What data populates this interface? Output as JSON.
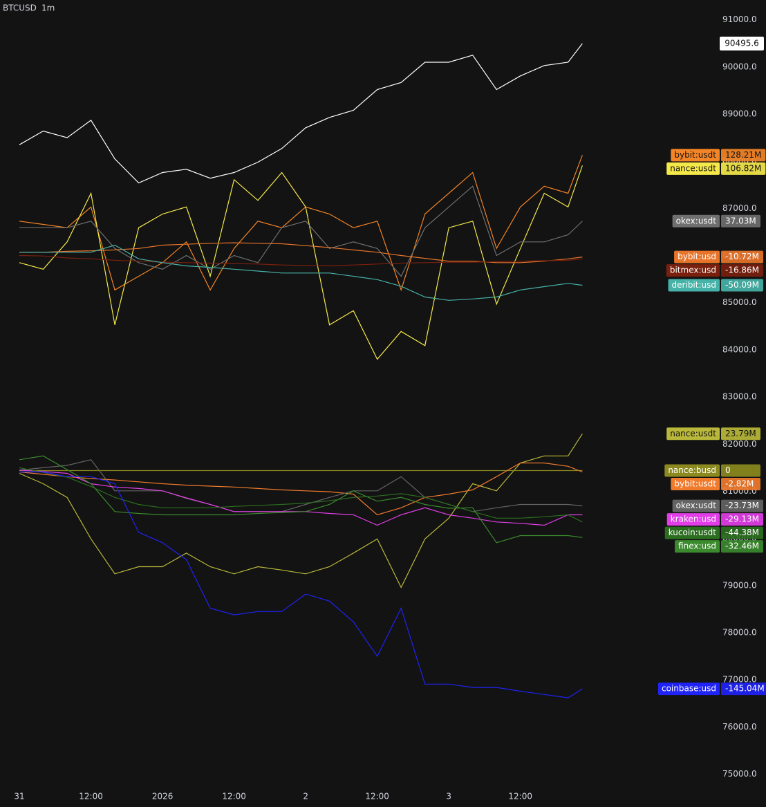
{
  "chart_data": {
    "type": "line",
    "title": "BTCUSD",
    "interval": "1m",
    "background": "#131313",
    "x": [
      0,
      4,
      8,
      12,
      16,
      20,
      24,
      28,
      32,
      36,
      40,
      44,
      48,
      52,
      56,
      60,
      64,
      68,
      72,
      76,
      80,
      84,
      88,
      92,
      94.4
    ],
    "xlim": [
      -3.25,
      117.3
    ],
    "xticks": [
      {
        "value": 0,
        "label": "31"
      },
      {
        "value": 12,
        "label": "12:00"
      },
      {
        "value": 24,
        "label": "2026"
      },
      {
        "value": 36,
        "label": "12:00"
      },
      {
        "value": 48,
        "label": "2"
      },
      {
        "value": 60,
        "label": "12:00"
      },
      {
        "value": 72,
        "label": "3"
      },
      {
        "value": 84,
        "label": "12:00"
      }
    ],
    "ylim": [
      74700,
      91420
    ],
    "yticks": [
      {
        "value": 75000,
        "label": "75000.0"
      },
      {
        "value": 76000,
        "label": "76000.0"
      },
      {
        "value": 77000,
        "label": "77000.0"
      },
      {
        "value": 78000,
        "label": "78000.0"
      },
      {
        "value": 79000,
        "label": "79000.0"
      },
      {
        "value": 80000,
        "label": "80000.0"
      },
      {
        "value": 81000,
        "label": "81000.0"
      },
      {
        "value": 82000,
        "label": "82000.0"
      },
      {
        "value": 83000,
        "label": "83000.0"
      },
      {
        "value": 84000,
        "label": "84000.0"
      },
      {
        "value": 85000,
        "label": "85000.0"
      },
      {
        "value": 86000,
        "label": "86000.0"
      },
      {
        "value": 87000,
        "label": "87000.0"
      },
      {
        "value": 88000,
        "label": "88000.0"
      },
      {
        "value": 89000,
        "label": "89000.0"
      },
      {
        "value": 90000,
        "label": "90000.0"
      },
      {
        "value": 91000,
        "label": "91000.0"
      }
    ],
    "series": [
      {
        "color": "#ffffff",
        "values": [
          88350,
          88640,
          88500,
          88870,
          88050,
          87540,
          87760,
          87830,
          87640,
          87760,
          87980,
          88270,
          88710,
          88930,
          89080,
          89520,
          89670,
          90100,
          90100,
          90250,
          89520,
          89810,
          90030,
          90100,
          90495.6
        ]
      },
      {
        "name": "bybit:usdt",
        "label": "128.21M",
        "color": "#f48526",
        "values": [
          86730,
          86660,
          86590,
          87030,
          85270,
          85560,
          85850,
          86290,
          85270,
          86150,
          86730,
          86590,
          87030,
          86880,
          86590,
          86730,
          85270,
          86880,
          87320,
          87760,
          86150,
          87030,
          87470,
          87320,
          88130
        ]
      },
      {
        "name": "nance:usdt",
        "label": "106.82M",
        "color": "#f5e94a",
        "values": [
          85850,
          85710,
          86290,
          87320,
          84530,
          86590,
          86880,
          87030,
          85560,
          87610,
          87170,
          87760,
          87030,
          84530,
          84830,
          83800,
          84390,
          84090,
          86590,
          86730,
          84970,
          86150,
          87320,
          87030,
          87910
        ]
      },
      {
        "name": "okex:usdt",
        "label": "37.03M",
        "color": "#6f6f6f",
        "values": [
          86590,
          86590,
          86590,
          86730,
          86150,
          85850,
          85710,
          86000,
          85710,
          86000,
          85850,
          86590,
          86730,
          86150,
          86290,
          86150,
          85560,
          86590,
          87030,
          87470,
          86000,
          86290,
          86290,
          86440,
          86730
        ]
      },
      {
        "name": "bybit:usd",
        "label": "-10.72M",
        "color": "#e8742a",
        "values": [
          86070,
          86070,
          86090,
          86100,
          86120,
          86150,
          86220,
          86240,
          86260,
          86270,
          86260,
          86250,
          86210,
          86170,
          86120,
          86070,
          86000,
          85940,
          85880,
          85880,
          85850,
          85850,
          85880,
          85930,
          85970
        ]
      },
      {
        "name": "bitmex:usd",
        "label": "-16.86M",
        "color": "#7a200e",
        "values": [
          86000,
          85990,
          85950,
          85930,
          85900,
          85880,
          85860,
          85850,
          85840,
          85830,
          85820,
          85800,
          85790,
          85780,
          85800,
          85820,
          85840,
          85850,
          85860,
          85860,
          85870,
          85880,
          85890,
          85900,
          85930
        ]
      },
      {
        "name": "deribit:usd",
        "label": "-50.09M",
        "color": "#46b3a8",
        "values": [
          86070,
          86070,
          86070,
          86070,
          86220,
          85930,
          85850,
          85780,
          85750,
          85710,
          85670,
          85630,
          85630,
          85630,
          85560,
          85490,
          85350,
          85120,
          85050,
          85080,
          85120,
          85270,
          85340,
          85410,
          85370
        ]
      },
      {
        "name": "nance:usdt",
        "label": "23.79M",
        "color": "#b9b83a",
        "values": [
          81380,
          81160,
          80870,
          79990,
          79250,
          79400,
          79400,
          79690,
          79400,
          79250,
          79400,
          79330,
          79250,
          79400,
          79690,
          79990,
          78960,
          79990,
          80430,
          81160,
          81010,
          81600,
          81750,
          81750,
          82220
        ]
      },
      {
        "name": "nance:busd",
        "label": "0",
        "color": "#8c8a1e",
        "values": [
          81440,
          81440,
          81440,
          81440,
          81440,
          81440,
          81440,
          81440,
          81440,
          81440,
          81440,
          81440,
          81440,
          81440,
          81440,
          81440,
          81440,
          81440,
          81440,
          81440,
          81440,
          81440,
          81440,
          81440,
          81440
        ]
      },
      {
        "name": "bybit:usdt",
        "label": "-2.82M",
        "color": "#f07b2c",
        "values": [
          81410,
          81360,
          81310,
          81270,
          81240,
          81200,
          81160,
          81130,
          81110,
          81090,
          81060,
          81030,
          81010,
          80990,
          80940,
          80500,
          80650,
          80870,
          80940,
          81030,
          81310,
          81600,
          81600,
          81530,
          81410
        ]
      },
      {
        "name": "okex:usdt",
        "label": "-23.73M",
        "color": "#646464",
        "values": [
          81450,
          81500,
          81550,
          81670,
          81010,
          81010,
          81010,
          80850,
          80720,
          80570,
          80570,
          80570,
          80720,
          80870,
          81010,
          81010,
          81310,
          80870,
          80720,
          80570,
          80650,
          80720,
          80720,
          80720,
          80690
        ]
      },
      {
        "name": "kraken:usd",
        "label": "-29.13M",
        "color": "#e23ee8",
        "values": [
          81450,
          81420,
          81380,
          81160,
          81090,
          81060,
          81010,
          80860,
          80720,
          80570,
          80570,
          80570,
          80570,
          80530,
          80500,
          80280,
          80500,
          80650,
          80500,
          80430,
          80350,
          80320,
          80280,
          80500,
          80500
        ]
      },
      {
        "name": "finex:usd",
        "label": "-32.46M",
        "color": "#3b8a2e",
        "values": [
          81670,
          81750,
          81460,
          81160,
          80570,
          80530,
          80500,
          80500,
          80500,
          80500,
          80530,
          80550,
          80570,
          80720,
          81010,
          80790,
          80870,
          80720,
          80640,
          80650,
          79910,
          80060,
          80060,
          80060,
          80020
        ]
      },
      {
        "name": "kucoin:usdt",
        "label": "-44.38M",
        "color": "#2b6e1f",
        "values": [
          81500,
          81400,
          81300,
          81100,
          80870,
          80720,
          80650,
          80650,
          80650,
          80680,
          80700,
          80720,
          80750,
          80800,
          80870,
          80900,
          80950,
          80870,
          80720,
          80570,
          80430,
          80430,
          80460,
          80500,
          80350
        ]
      },
      {
        "name": "coinbase:usd",
        "label": "-145.04M",
        "color": "#1f23f5",
        "values": [
          81410,
          81410,
          81310,
          81310,
          81160,
          80130,
          79910,
          79550,
          78520,
          78380,
          78450,
          78450,
          78820,
          78670,
          78230,
          77500,
          78520,
          76910,
          76910,
          76840,
          76840,
          76760,
          76690,
          76620,
          76810
        ]
      }
    ]
  }
}
